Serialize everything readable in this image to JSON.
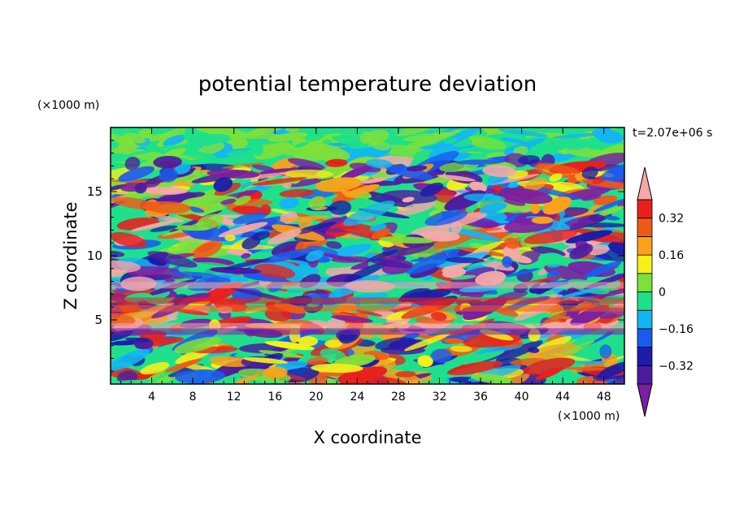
{
  "chart_data": {
    "type": "heatmap",
    "title": "potential temperature deviation",
    "xlabel": "X coordinate",
    "ylabel": "Z coordinate",
    "x_unit": "(×1000 m)",
    "y_unit": "(×1000 m)",
    "time_label": "t=2.07e+06 s",
    "xlim": [
      0,
      50
    ],
    "ylim": [
      0,
      20
    ],
    "x_ticks": [
      4,
      8,
      12,
      16,
      20,
      24,
      28,
      32,
      36,
      40,
      44,
      48
    ],
    "y_ticks": [
      5,
      10,
      15
    ],
    "colorbar": {
      "levels": [
        -0.4,
        -0.32,
        -0.24,
        -0.16,
        -0.08,
        0,
        0.08,
        0.16,
        0.24,
        0.32,
        0.4
      ],
      "tick_labels": [
        "0.32",
        "0.16",
        "0",
        "−0.16",
        "−0.32"
      ],
      "tick_values": [
        0.32,
        0.16,
        0,
        -0.16,
        -0.32
      ],
      "colors": [
        "#7a1fa2",
        "#4b1ca0",
        "#1c1ca8",
        "#1a5cf0",
        "#12b6f4",
        "#1fe08a",
        "#7ee03a",
        "#f6f01a",
        "#f9a21a",
        "#f05a18",
        "#e8201c",
        "#f6a8a8"
      ],
      "extend": "both"
    }
  }
}
